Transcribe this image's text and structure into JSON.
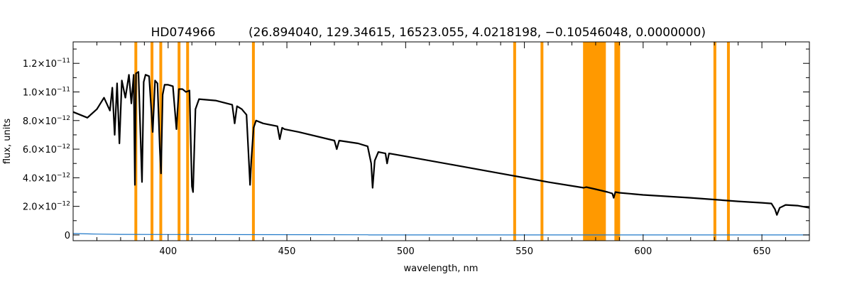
{
  "chart_data": {
    "type": "line",
    "title": "HD074966",
    "subtitle": "(26.894040, 129.34615, 16523.055, 4.0218198, −0.10546048, 0.0000000)",
    "xlabel": "wavelength, nm",
    "ylabel": "flux, units",
    "xlim": [
      360,
      670
    ],
    "ylim": [
      -4e-13,
      1.35e-11
    ],
    "x_ticks": [
      400,
      450,
      500,
      550,
      600,
      650
    ],
    "y_ticks": [
      0,
      2e-12,
      4e-12,
      6e-12,
      8e-12,
      1e-11,
      1.2e-11
    ],
    "y_tick_labels": [
      {
        "mant": "0",
        "exp": ""
      },
      {
        "mant": "2.0×10",
        "exp": "−12"
      },
      {
        "mant": "4.0×10",
        "exp": "−12"
      },
      {
        "mant": "6.0×10",
        "exp": "−12"
      },
      {
        "mant": "8.0×10",
        "exp": "−12"
      },
      {
        "mant": "1.0×10",
        "exp": "−11"
      },
      {
        "mant": "1.2×10",
        "exp": "−11"
      }
    ],
    "grid": false,
    "colors": {
      "flux": "#000000",
      "error": "#1f78c8",
      "mask": "#ff9900"
    },
    "mask_bands_nm": [
      [
        385.8,
        387.0
      ],
      [
        392.6,
        393.8
      ],
      [
        396.3,
        397.5
      ],
      [
        404.0,
        405.2
      ],
      [
        407.6,
        408.8
      ],
      [
        435.3,
        436.5
      ],
      [
        545.3,
        546.5
      ],
      [
        556.8,
        558.0
      ],
      [
        574.7,
        584.3
      ],
      [
        587.9,
        590.3
      ],
      [
        629.6,
        630.8
      ],
      [
        635.3,
        636.5
      ]
    ],
    "series": [
      {
        "key": "flux",
        "x": [
          360,
          366,
          370,
          373,
          375.5,
          376.5,
          377.5,
          378.5,
          379.5,
          380.5,
          382,
          383.5,
          384.5,
          385.5,
          386,
          386.5,
          387.5,
          388.5,
          389,
          389.7,
          390.5,
          392,
          393.5,
          394.5,
          395.5,
          396.5,
          397,
          397.7,
          398.5,
          400,
          402,
          403.5,
          404.5,
          406,
          407.5,
          409,
          410,
          410.5,
          411.5,
          413,
          420,
          427,
          428,
          429,
          431,
          433,
          434,
          434.5,
          435,
          436,
          437,
          440,
          446,
          447,
          448,
          449,
          455,
          470,
          471,
          472,
          480,
          484,
          485.5,
          486.1,
          487,
          488.5,
          491.5,
          492.2,
          493,
          500,
          520,
          540,
          560,
          575,
          576,
          580,
          585,
          587,
          587.6,
          588.3,
          590,
          600,
          620,
          640,
          650,
          654,
          655.5,
          656.3,
          657.5,
          660,
          665,
          670
        ],
        "y": [
          8.6e-12,
          8.2e-12,
          8.8e-12,
          9.6e-12,
          8.7e-12,
          1.03e-11,
          7e-12,
          1.06e-11,
          6.4e-12,
          1.08e-11,
          9.6e-12,
          1.12e-11,
          9.2e-12,
          1.12e-11,
          3.5e-12,
          1.13e-11,
          1.14e-11,
          6.3e-12,
          3.7e-12,
          1.07e-11,
          1.12e-11,
          1.11e-11,
          7.2e-12,
          1.08e-11,
          1.06e-11,
          6e-12,
          4.3e-12,
          9.8e-12,
          1.05e-11,
          1.05e-11,
          1.04e-11,
          7.4e-12,
          1.02e-11,
          1.02e-11,
          1e-11,
          1.01e-11,
          3.4e-12,
          3e-12,
          8.8e-12,
          9.5e-12,
          9.4e-12,
          9.1e-12,
          7.8e-12,
          9e-12,
          8.8e-12,
          8.4e-12,
          5.2e-12,
          3.5e-12,
          5.2e-12,
          7.5e-12,
          8e-12,
          7.8e-12,
          7.6e-12,
          6.7e-12,
          7.5e-12,
          7.4e-12,
          7.2e-12,
          6.6e-12,
          6e-12,
          6.6e-12,
          6.4e-12,
          6.2e-12,
          5e-12,
          3.3e-12,
          5.2e-12,
          5.8e-12,
          5.7e-12,
          5e-12,
          5.7e-12,
          5.5e-12,
          4.9e-12,
          4.3e-12,
          3.7e-12,
          3.3e-12,
          3.35e-12,
          3.2e-12,
          3e-12,
          2.9e-12,
          2.6e-12,
          3e-12,
          2.95e-12,
          2.8e-12,
          2.6e-12,
          2.35e-12,
          2.25e-12,
          2.2e-12,
          1.8e-12,
          1.4e-12,
          1.9e-12,
          2.1e-12,
          2.05e-12,
          1.9e-12
        ]
      },
      {
        "key": "error",
        "x": [
          360,
          370,
          380,
          400,
          440,
          484,
          484.5,
          670
        ],
        "y": [
          1e-13,
          6e-14,
          4e-14,
          3e-14,
          2e-14,
          1e-14,
          0,
          0
        ]
      }
    ]
  }
}
